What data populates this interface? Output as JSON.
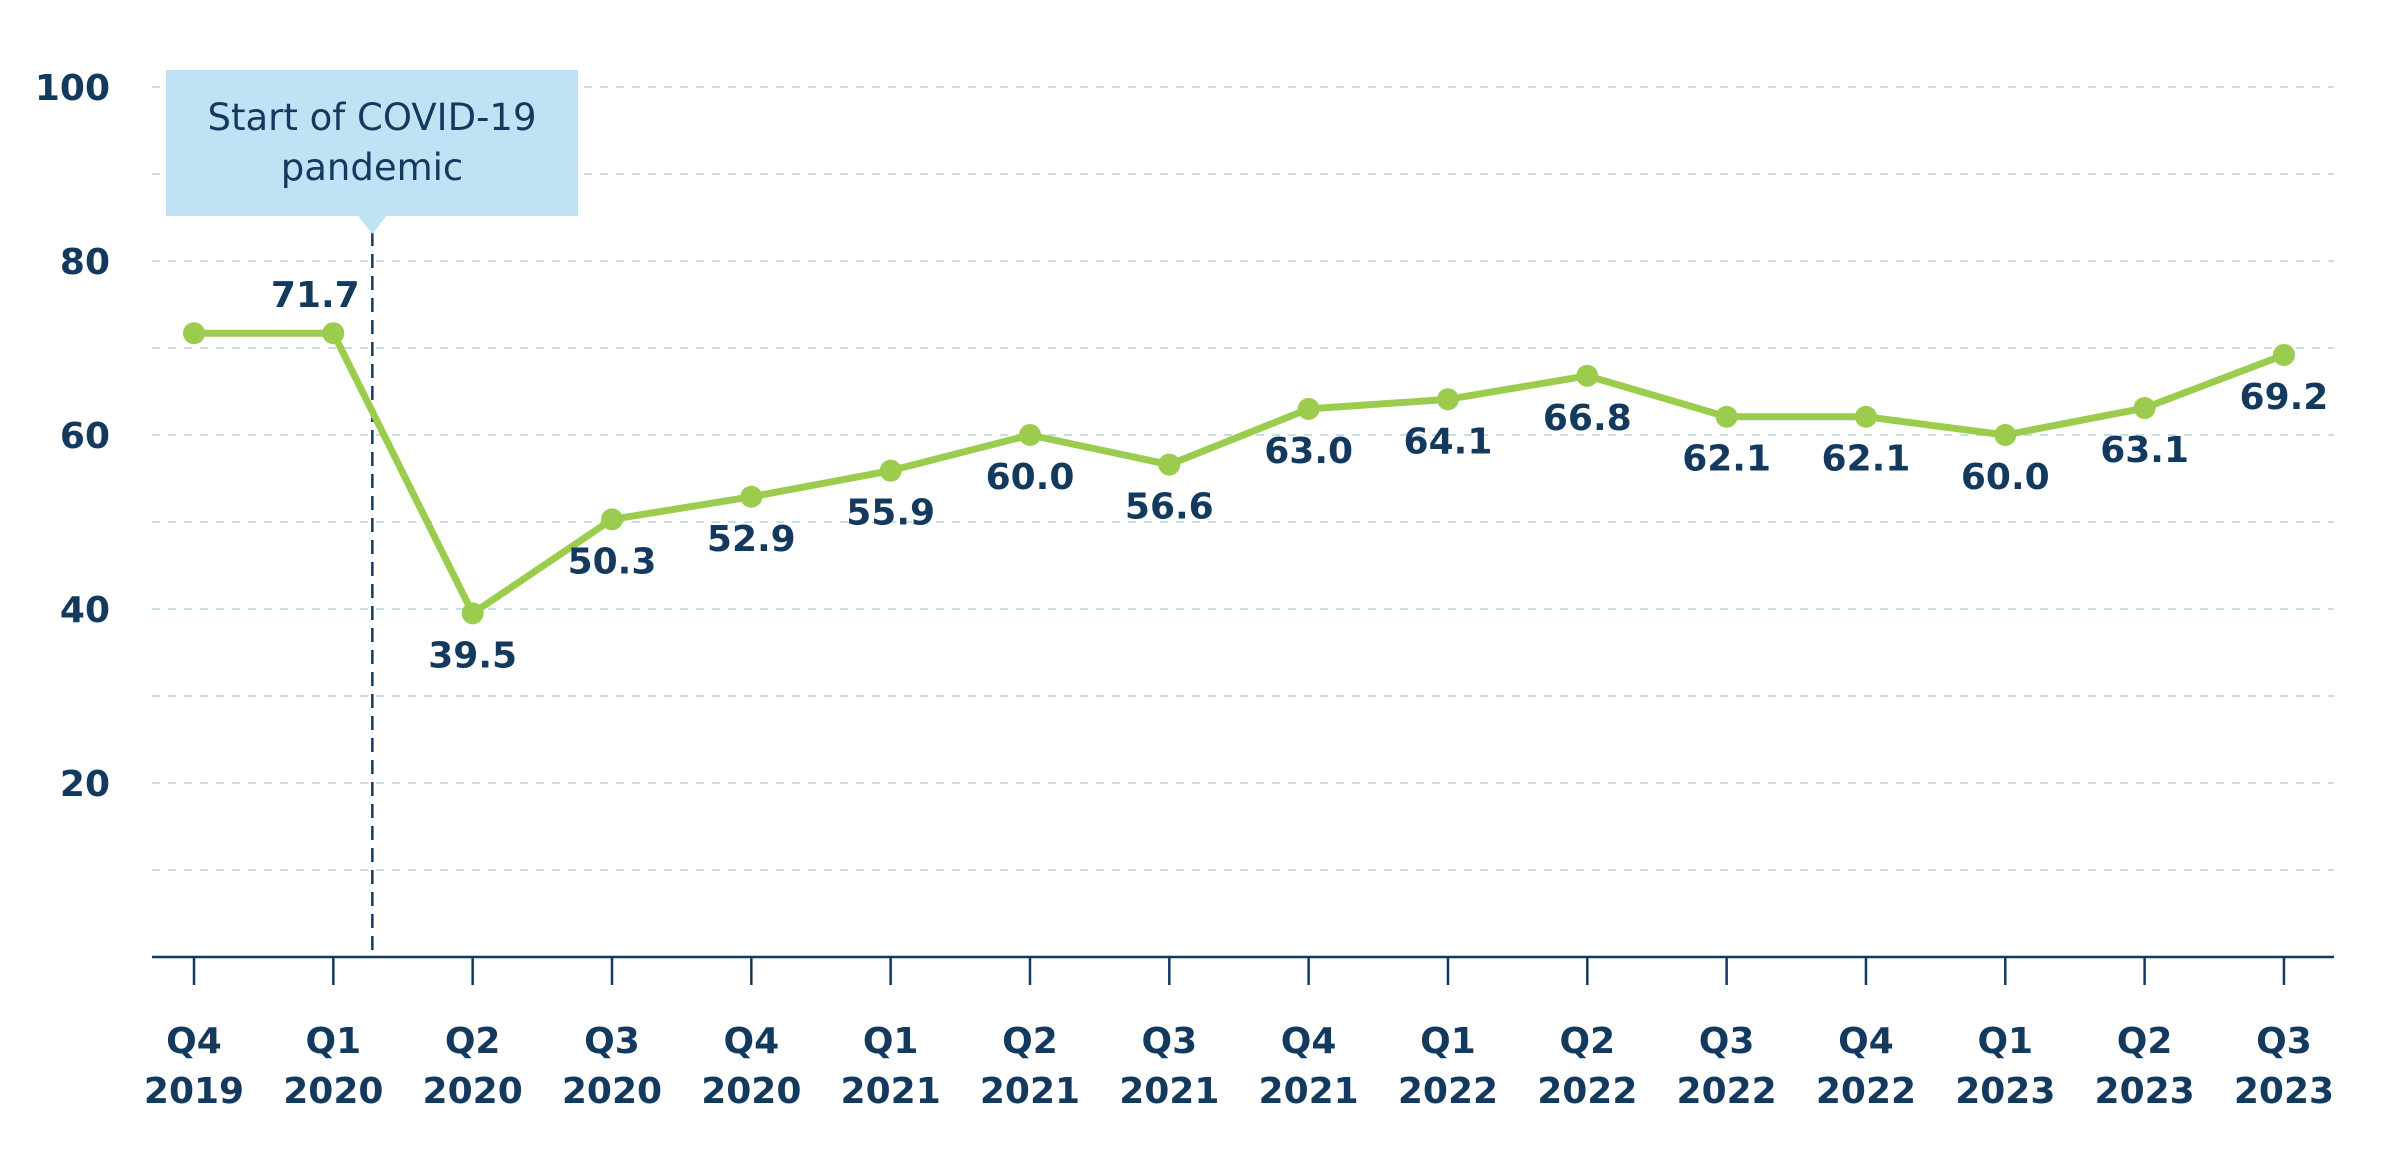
{
  "chart_data": {
    "type": "line",
    "categories": [
      "Q4 2019",
      "Q1 2020",
      "Q2 2020",
      "Q3 2020",
      "Q4 2020",
      "Q1 2021",
      "Q2 2021",
      "Q3 2021",
      "Q4 2021",
      "Q1 2022",
      "Q2 2022",
      "Q3 2022",
      "Q4 2022",
      "Q1 2023",
      "Q2 2023",
      "Q3 2023"
    ],
    "category_lines": [
      [
        "Q4",
        "2019"
      ],
      [
        "Q1",
        "2020"
      ],
      [
        "Q2",
        "2020"
      ],
      [
        "Q3",
        "2020"
      ],
      [
        "Q4",
        "2020"
      ],
      [
        "Q1",
        "2021"
      ],
      [
        "Q2",
        "2021"
      ],
      [
        "Q3",
        "2021"
      ],
      [
        "Q4",
        "2021"
      ],
      [
        "Q1",
        "2022"
      ],
      [
        "Q2",
        "2022"
      ],
      [
        "Q3",
        "2022"
      ],
      [
        "Q4",
        "2022"
      ],
      [
        "Q1",
        "2023"
      ],
      [
        "Q2",
        "2023"
      ],
      [
        "Q3",
        "2023"
      ]
    ],
    "values": [
      71.7,
      71.7,
      39.5,
      50.3,
      52.9,
      55.9,
      60.0,
      56.6,
      63.0,
      64.1,
      66.8,
      62.1,
      62.1,
      60.0,
      63.1,
      69.2
    ],
    "data_labels": [
      null,
      "71.7",
      "39.5",
      "50.3",
      "52.9",
      "55.9",
      "60.0",
      "56.6",
      "63.0",
      "64.1",
      "66.8",
      "62.1",
      "62.1",
      "60.0",
      "63.1",
      "69.2"
    ],
    "label_positions": [
      "none",
      "above",
      "below",
      "below",
      "below",
      "below",
      "below",
      "below",
      "below",
      "below",
      "below",
      "below",
      "below",
      "below",
      "below",
      "below"
    ],
    "y_ticks": [
      "20",
      "40",
      "60",
      "80",
      "100"
    ],
    "ylim": [
      0,
      100
    ],
    "grid": true,
    "grid_step": 10,
    "title": "",
    "xlabel": "",
    "ylabel": "",
    "annotation": {
      "lines": [
        "Start of COVID-19",
        "pandemic"
      ],
      "position_between": [
        "Q1 2020",
        "Q2 2020"
      ],
      "fraction": 0.28
    },
    "colors": {
      "line": "#9ccc4e",
      "text": "#133a5e",
      "grid": "#c8dde4",
      "axis": "#133a5e",
      "annotation_bg": "#bfe2f5"
    }
  }
}
